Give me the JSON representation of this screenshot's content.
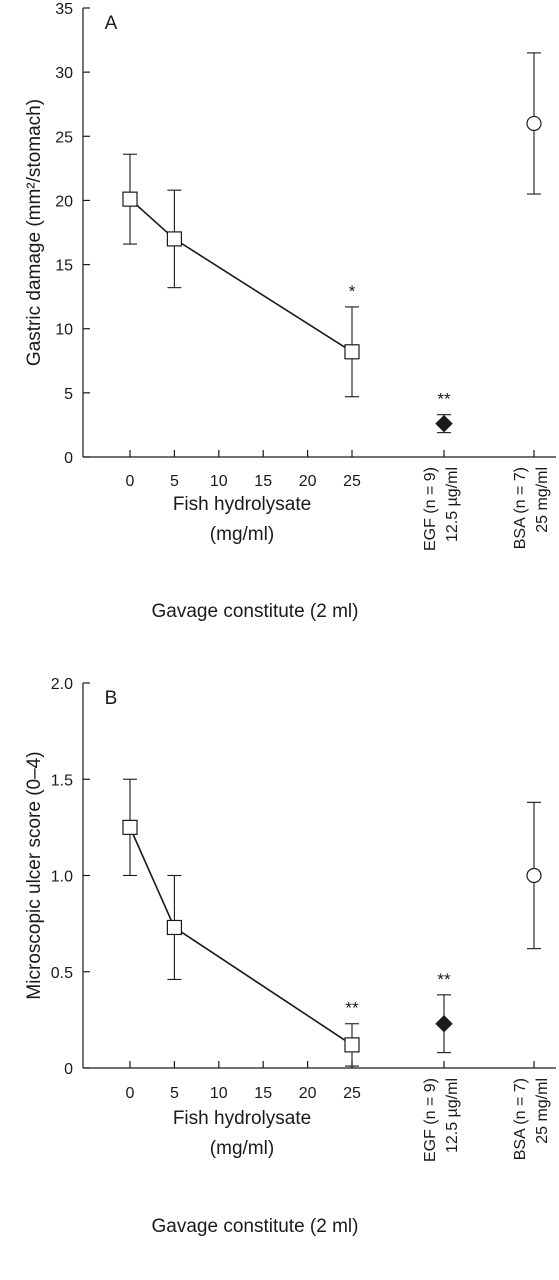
{
  "chart_data": [
    {
      "type": "scatter",
      "panel_label": "A",
      "ylabel": "Gastric damage (mm²/stomach)",
      "ylim": [
        0,
        35
      ],
      "yticks": [
        "0",
        "5",
        "10",
        "15",
        "20",
        "25",
        "30",
        "35"
      ],
      "xlabel_line1": "Fish hydrolysate",
      "xlabel_line2": "(mg/ml)",
      "group_label": "Gavage constitute (2 ml)",
      "xticks": [
        "0",
        "5",
        "10",
        "15",
        "20",
        "25"
      ],
      "grid": false,
      "series": [
        {
          "marker": "square-open",
          "connected": true,
          "x": [
            0,
            5,
            25
          ],
          "y": [
            20.1,
            17.0,
            8.2
          ],
          "err": [
            3.5,
            3.8,
            3.5
          ],
          "sig": [
            "",
            "",
            "*"
          ]
        }
      ],
      "extra_points": [
        {
          "label_line1": "EGF (n = 9)",
          "label_line2": "12.5 µg/ml",
          "marker": "diamond-filled",
          "y": 2.6,
          "err": 0.7,
          "sig": "**"
        },
        {
          "label_line1": "BSA (n = 7)",
          "label_line2": "25 mg/ml",
          "marker": "circle-open",
          "y": 26.0,
          "err": 5.5,
          "sig": ""
        }
      ]
    },
    {
      "type": "scatter",
      "panel_label": "B",
      "ylabel": "Microscopic ulcer score (0–4)",
      "ylim": [
        0,
        2.0
      ],
      "yticks": [
        "0",
        "0.5",
        "1.0",
        "1.5",
        "2.0"
      ],
      "xlabel_line1": "Fish hydrolysate",
      "xlabel_line2": "(mg/ml)",
      "group_label": "Gavage constitute (2 ml)",
      "xticks": [
        "0",
        "5",
        "10",
        "15",
        "20",
        "25"
      ],
      "grid": false,
      "series": [
        {
          "marker": "square-open",
          "connected": true,
          "x": [
            0,
            5,
            25
          ],
          "y": [
            1.25,
            0.73,
            0.12
          ],
          "err": [
            0.25,
            0.27,
            0.11
          ],
          "sig": [
            "",
            "",
            "**"
          ]
        }
      ],
      "extra_points": [
        {
          "label_line1": "EGF (n = 9)",
          "label_line2": "12.5 µg/ml",
          "marker": "diamond-filled",
          "y": 0.23,
          "err": 0.15,
          "sig": "**"
        },
        {
          "label_line1": "BSA (n = 7)",
          "label_line2": "25 mg/ml",
          "marker": "circle-open",
          "y": 1.0,
          "err": 0.38,
          "sig": ""
        }
      ]
    }
  ]
}
